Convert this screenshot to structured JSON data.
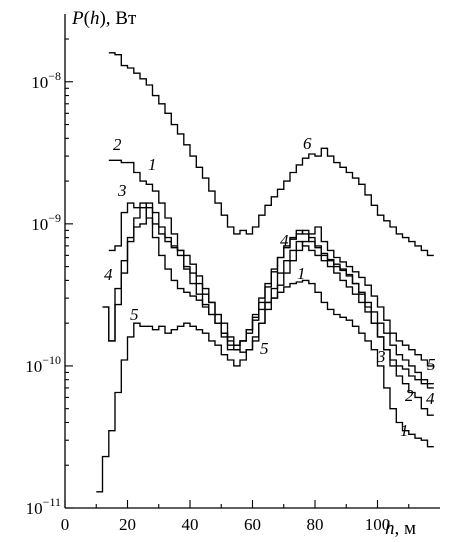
{
  "chart_data": {
    "type": "line",
    "step": true,
    "title": "",
    "ylabel": "P(h), Вт",
    "ylabel_parts": {
      "symbol": "P",
      "paren_open": "(",
      "arg": "h",
      "paren_close_unit": "), Вт"
    },
    "xlabel": "h, м",
    "xlabel_parts": {
      "symbol": "h",
      "unit": ", м"
    },
    "xlim": [
      0,
      120
    ],
    "ylim": [
      1e-11,
      3e-08
    ],
    "yscale": "log",
    "grid": false,
    "legend": "none",
    "x_ticks": [
      0,
      20,
      40,
      60,
      80,
      100
    ],
    "y_ticks": [
      {
        "value": 1e-08,
        "base": "10",
        "exp": "−8"
      },
      {
        "value": 1e-09,
        "base": "10",
        "exp": "−9"
      },
      {
        "value": 1e-10,
        "base": "10",
        "exp": "−10"
      },
      {
        "value": 1e-11,
        "base": "10",
        "exp": "−11"
      }
    ],
    "series": [
      {
        "label": "1",
        "x": [
          14,
          16,
          18,
          20,
          22,
          24,
          26,
          28,
          30,
          32,
          34,
          36,
          38,
          40,
          42,
          44,
          46,
          48,
          50,
          52,
          54,
          56,
          58,
          60,
          62,
          64,
          66,
          68,
          70,
          72,
          74,
          76,
          78,
          80,
          82,
          84,
          86,
          88,
          90,
          92,
          94,
          96,
          98,
          100,
          102,
          104,
          106,
          108,
          110,
          112,
          114,
          116
        ],
        "y": [
          2.8e-09,
          2.8e-09,
          2.7e-09,
          2.7e-09,
          2.3e-09,
          2e-09,
          1.9e-09,
          1.7e-09,
          1.4e-09,
          1.1e-09,
          8.5e-10,
          6.5e-10,
          4.8e-10,
          3.8e-10,
          3.2e-10,
          2.7e-10,
          2.3e-10,
          2e-10,
          1.7e-10,
          1.5e-10,
          1.4e-10,
          1.5e-10,
          1.7e-10,
          2.1e-10,
          2.5e-10,
          2.8e-10,
          3e-10,
          3.3e-10,
          3.6e-10,
          3.8e-10,
          3.9e-10,
          4e-10,
          3.8e-10,
          3.3e-10,
          2.8e-10,
          2.5e-10,
          2.3e-10,
          2.2e-10,
          2.1e-10,
          1.9e-10,
          1.7e-10,
          1.5e-10,
          1.3e-10,
          1e-10,
          7e-11,
          5e-11,
          4e-11,
          3.5e-11,
          3.3e-11,
          3.1e-11,
          3e-11,
          2.7e-11
        ]
      },
      {
        "label": "2",
        "x": [
          14,
          16,
          18,
          20,
          22,
          24,
          26,
          28,
          30,
          32,
          34,
          36,
          38,
          40,
          42,
          44,
          46,
          48,
          50,
          52,
          54,
          56,
          58,
          60,
          62,
          64,
          66,
          68,
          70,
          72,
          74,
          76,
          78,
          80,
          82,
          84,
          86,
          88,
          90,
          92,
          94,
          96,
          98,
          100,
          102,
          104,
          106,
          108,
          110,
          112,
          114,
          116
        ],
        "y": [
          6.5e-10,
          7e-10,
          1.2e-09,
          1.4e-09,
          1.3e-09,
          1.3e-09,
          1.4e-09,
          1.2e-09,
          9.5e-10,
          8e-10,
          6.8e-10,
          6e-10,
          5e-10,
          4.5e-10,
          3.8e-10,
          3.2e-10,
          2.8e-10,
          2.3e-10,
          2e-10,
          1.6e-10,
          1.3e-10,
          1.25e-10,
          1.3e-10,
          1.5e-10,
          2e-10,
          2.8e-10,
          3.5e-10,
          4.5e-10,
          5.5e-10,
          6.5e-10,
          7.5e-10,
          7e-10,
          6.5e-10,
          6e-10,
          5.5e-10,
          5e-10,
          4.5e-10,
          4e-10,
          3.6e-10,
          3.2e-10,
          2.8e-10,
          2.4e-10,
          2e-10,
          1.6e-10,
          1.3e-10,
          1e-10,
          8.5e-11,
          7.5e-11,
          6.5e-11,
          6e-11,
          5e-11,
          4.5e-11
        ]
      },
      {
        "label": "3",
        "x": [
          12,
          14,
          16,
          18,
          20,
          22,
          24,
          26,
          28,
          30,
          32,
          34,
          36,
          38,
          40,
          42,
          44,
          46,
          48,
          50,
          52,
          54,
          56,
          58,
          60,
          62,
          64,
          66,
          68,
          70,
          72,
          74,
          76,
          78,
          80,
          82,
          84,
          86,
          88,
          90,
          92,
          94,
          96,
          98,
          100,
          102,
          104,
          106,
          108,
          110,
          112,
          114,
          116
        ],
        "y": [
          2.6e-10,
          1.5e-10,
          2.7e-10,
          4.5e-10,
          7.5e-10,
          9.5e-10,
          1e-09,
          1.3e-09,
          1e-09,
          8.5e-10,
          7.5e-10,
          7e-10,
          6.5e-10,
          6e-10,
          5.2e-10,
          4.3e-10,
          3.5e-10,
          2.8e-10,
          2.3e-10,
          1.7e-10,
          1.3e-10,
          1.3e-10,
          1.5e-10,
          1.8e-10,
          2.3e-10,
          3e-10,
          3.8e-10,
          4.8e-10,
          5.8e-10,
          6.8e-10,
          7.8e-10,
          8.5e-10,
          9e-10,
          8e-10,
          7e-10,
          6e-10,
          5.5e-10,
          5e-10,
          4.7e-10,
          4.3e-10,
          3.8e-10,
          3.2e-10,
          2.6e-10,
          2e-10,
          1.6e-10,
          1.3e-10,
          1.1e-10,
          1e-10,
          9.5e-11,
          8.5e-11,
          8e-11,
          7.5e-11,
          7e-11
        ]
      },
      {
        "label": "4",
        "x": [
          12,
          14,
          16,
          18,
          20,
          22,
          24,
          26,
          28,
          30,
          32,
          34,
          36,
          38,
          40,
          42,
          44,
          46,
          48,
          50,
          52,
          54,
          56,
          58,
          60,
          62,
          64,
          66,
          68,
          70,
          72,
          74,
          76,
          78,
          80,
          82,
          84,
          86,
          88,
          90,
          92,
          94,
          96,
          98,
          100,
          102,
          104,
          106,
          108,
          110,
          112,
          114,
          116
        ],
        "y": [
          2.6e-10,
          1.5e-10,
          3.5e-10,
          5.5e-10,
          8e-10,
          1.1e-09,
          1.4e-09,
          1.1e-09,
          8e-10,
          6e-10,
          4.8e-10,
          4e-10,
          3.5e-10,
          3.3e-10,
          3.1e-10,
          2.9e-10,
          2.6e-10,
          2.3e-10,
          2e-10,
          1.6e-10,
          1.4e-10,
          1.4e-10,
          1.5e-10,
          1.8e-10,
          2.2e-10,
          2.8e-10,
          3.6e-10,
          4.6e-10,
          5.8e-10,
          7e-10,
          8e-10,
          9e-10,
          8.5e-10,
          7.5e-10,
          6.8e-10,
          6.2e-10,
          5.6e-10,
          5.2e-10,
          4.8e-10,
          4.4e-10,
          3.8e-10,
          3.3e-10,
          2.8e-10,
          2.4e-10,
          2e-10,
          1.7e-10,
          1.4e-10,
          1.2e-10,
          1.1e-10,
          1e-10,
          9e-11,
          8e-11,
          7.5e-11
        ]
      },
      {
        "label": "5",
        "x": [
          10,
          12,
          14,
          16,
          18,
          20,
          22,
          24,
          26,
          28,
          30,
          32,
          34,
          36,
          38,
          40,
          42,
          44,
          46,
          48,
          50,
          52,
          54,
          56,
          58,
          60,
          62,
          64,
          66,
          68,
          70,
          72,
          74,
          76,
          78,
          80,
          82,
          84,
          86,
          88,
          90,
          92,
          94,
          96,
          98,
          100,
          102,
          104,
          106,
          108,
          110,
          112,
          114,
          116
        ],
        "y": [
          1.3e-11,
          2.3e-11,
          3.5e-11,
          6.5e-11,
          1.1e-10,
          1.6e-10,
          2e-10,
          1.9e-10,
          1.9e-10,
          1.8e-10,
          1.9e-10,
          1.7e-10,
          1.8e-10,
          1.9e-10,
          2e-10,
          1.9e-10,
          1.8e-10,
          1.7e-10,
          1.5e-10,
          1.4e-10,
          1.2e-10,
          1.1e-10,
          1e-10,
          1.1e-10,
          1.3e-10,
          1.6e-10,
          2e-10,
          2.5e-10,
          3e-10,
          3.7e-10,
          4.5e-10,
          5.5e-10,
          6.5e-10,
          7.5e-10,
          8.5e-10,
          9.5e-10,
          7.5e-10,
          6.5e-10,
          5.8e-10,
          5.4e-10,
          5e-10,
          4.6e-10,
          4.2e-10,
          3.7e-10,
          3.1e-10,
          2.6e-10,
          2.1e-10,
          1.7e-10,
          1.5e-10,
          1.4e-10,
          1.3e-10,
          1.2e-10,
          1.1e-10,
          1e-10
        ]
      },
      {
        "label": "6",
        "x": [
          14,
          16,
          18,
          20,
          22,
          24,
          26,
          28,
          30,
          32,
          34,
          36,
          38,
          40,
          42,
          44,
          46,
          48,
          50,
          52,
          54,
          56,
          58,
          60,
          62,
          64,
          66,
          68,
          70,
          72,
          74,
          76,
          78,
          80,
          82,
          84,
          86,
          88,
          90,
          92,
          94,
          96,
          98,
          100,
          102,
          104,
          106,
          108,
          110,
          112,
          114,
          116
        ],
        "y": [
          1.6e-08,
          1.55e-08,
          1.3e-08,
          1.25e-08,
          1.15e-08,
          1.05e-08,
          9.5e-09,
          8e-09,
          7e-09,
          6e-09,
          5e-09,
          4.3e-09,
          3.6e-09,
          3e-09,
          2.5e-09,
          2.1e-09,
          1.7e-09,
          1.4e-09,
          1.15e-09,
          9.5e-10,
          8.5e-10,
          9e-10,
          8.5e-10,
          9.5e-10,
          1.15e-09,
          1.35e-09,
          1.55e-09,
          1.75e-09,
          2e-09,
          2.3e-09,
          2.6e-09,
          2.9e-09,
          3.1e-09,
          3e-09,
          3.4e-09,
          3e-09,
          2.7e-09,
          2.5e-09,
          2.3e-09,
          2.1e-09,
          1.9e-09,
          1.6e-09,
          1.35e-09,
          1.15e-09,
          1.05e-09,
          9.5e-10,
          8.5e-10,
          8e-10,
          7.5e-10,
          7e-10,
          6.5e-10,
          6e-10
        ]
      }
    ]
  }
}
